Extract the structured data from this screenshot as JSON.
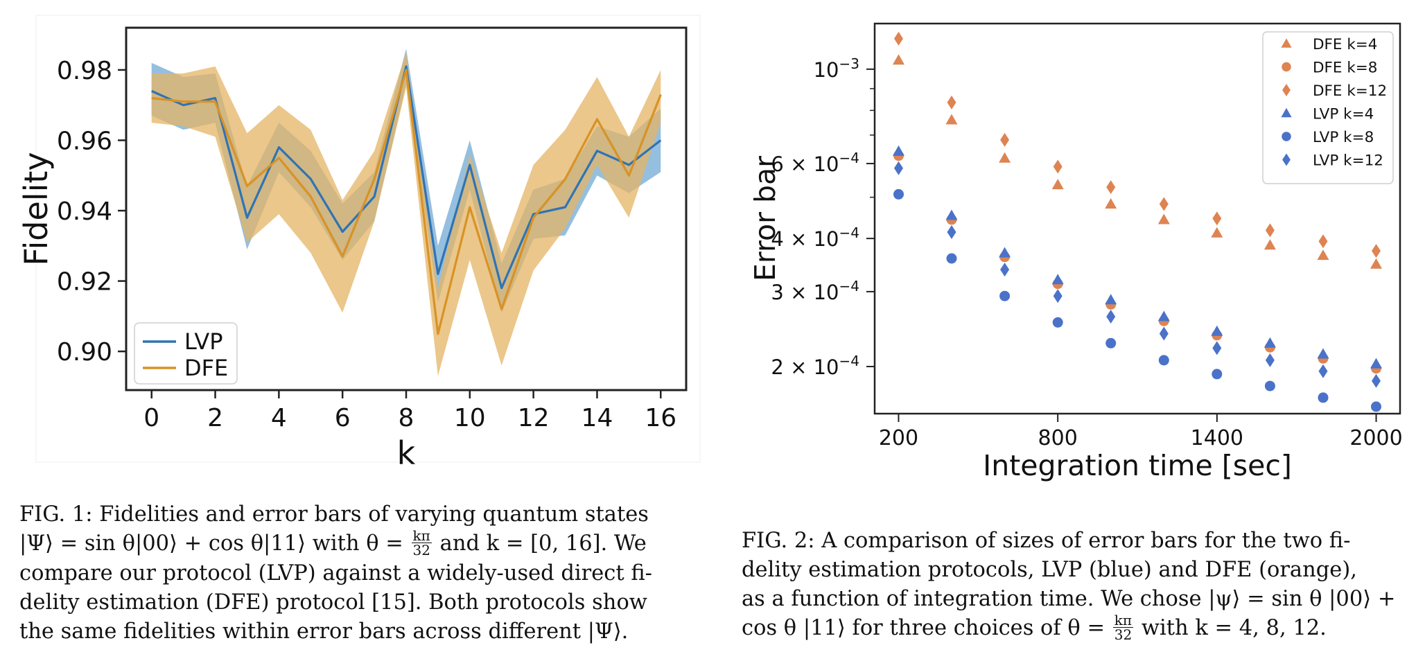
{
  "figure1": {
    "caption_lines": [
      "FIG. 1: Fidelities and error bars of varying quantum states",
      "|Ψ⟩ = sin θ|00⟩ + cos θ|11⟩ with θ = ",
      "and k = [0, 16]. We",
      "compare our protocol (LVP) against a widely-used direct fi-",
      "delity estimation (DFE) protocol [15]. Both protocols show",
      "the same fidelities within error bars across different |Ψ⟩."
    ],
    "theta_frac": {
      "num": "kπ",
      "den": "32"
    }
  },
  "figure2": {
    "caption_lines": [
      "FIG. 2: A comparison of sizes of error bars for the two fi-",
      "delity estimation protocols, LVP (blue) and DFE (orange),",
      "as a function of integration time. We chose |ψ⟩ = sin θ |00⟩ +",
      "cos θ |11⟩ for three choices of θ = ",
      "with k = 4, 8, 12."
    ],
    "theta_frac": {
      "num": "kπ",
      "den": "32"
    }
  },
  "colors": {
    "lvp": "#2f73b4",
    "lvp_band": "#82b4d8",
    "dfe": "#d89226",
    "dfe_band": "#e4b464",
    "blue_marker": "#4a72c9",
    "orange_marker": "#dd8452"
  },
  "chart_data": [
    {
      "type": "line",
      "xlabel": "k",
      "ylabel": "Fidelity",
      "xlim": [
        -0.8,
        16.8
      ],
      "ylim": [
        0.889,
        0.992
      ],
      "xticks": [
        0,
        2,
        4,
        6,
        8,
        10,
        12,
        14,
        16
      ],
      "yticks": [
        0.9,
        0.92,
        0.94,
        0.96,
        0.98
      ],
      "ytick_labels": [
        "0.90",
        "0.92",
        "0.94",
        "0.96",
        "0.98"
      ],
      "legend_position": "lower-left",
      "x": [
        0,
        1,
        2,
        3,
        4,
        5,
        6,
        7,
        8,
        9,
        10,
        11,
        12,
        13,
        14,
        15,
        16
      ],
      "series": [
        {
          "name": "LVP",
          "values": [
            0.974,
            0.97,
            0.972,
            0.938,
            0.958,
            0.949,
            0.934,
            0.944,
            0.981,
            0.922,
            0.953,
            0.918,
            0.939,
            0.941,
            0.957,
            0.953,
            0.96
          ],
          "lower": [
            0.967,
            0.963,
            0.965,
            0.929,
            0.951,
            0.941,
            0.926,
            0.937,
            0.976,
            0.914,
            0.946,
            0.911,
            0.932,
            0.933,
            0.95,
            0.945,
            0.951
          ],
          "upper": [
            0.982,
            0.978,
            0.979,
            0.947,
            0.965,
            0.957,
            0.942,
            0.951,
            0.986,
            0.93,
            0.96,
            0.925,
            0.946,
            0.949,
            0.964,
            0.961,
            0.969
          ]
        },
        {
          "name": "DFE",
          "values": [
            0.972,
            0.971,
            0.971,
            0.947,
            0.955,
            0.944,
            0.927,
            0.949,
            0.98,
            0.905,
            0.941,
            0.912,
            0.938,
            0.949,
            0.966,
            0.95,
            0.973
          ],
          "lower": [
            0.965,
            0.964,
            0.961,
            0.931,
            0.939,
            0.928,
            0.911,
            0.937,
            0.975,
            0.893,
            0.926,
            0.896,
            0.923,
            0.935,
            0.953,
            0.938,
            0.965
          ],
          "upper": [
            0.979,
            0.979,
            0.981,
            0.962,
            0.97,
            0.963,
            0.943,
            0.957,
            0.985,
            0.918,
            0.956,
            0.928,
            0.953,
            0.963,
            0.978,
            0.961,
            0.98
          ]
        }
      ]
    },
    {
      "type": "scatter",
      "xlabel": "Integration time [sec]",
      "ylabel": "Error bar",
      "yscale": "log",
      "xlim": [
        110,
        2090
      ],
      "ylim": [
        0.000155,
        0.00128
      ],
      "xticks": [
        200,
        800,
        1400,
        2000
      ],
      "yticks": [
        0.0002,
        0.0003,
        0.0004,
        0.0006,
        0.001
      ],
      "ytick_labels": [
        {
          "base": "2 × 10",
          "exp": "−4"
        },
        {
          "base": "3 × 10",
          "exp": "−4"
        },
        {
          "base": "4 × 10",
          "exp": "−4"
        },
        {
          "base": "6 × 10",
          "exp": "−4"
        },
        {
          "base": "10",
          "exp": "−3"
        }
      ],
      "legend_position": "top-right",
      "x": [
        200,
        400,
        600,
        800,
        1000,
        1200,
        1400,
        1600,
        1800,
        2000
      ],
      "series": [
        {
          "name": "DFE k=4",
          "marker": "triangle",
          "color": "orange",
          "values": [
            0.00105,
            0.00076,
            0.000618,
            0.000535,
            0.000482,
            0.000443,
            0.000412,
            0.000386,
            0.000365,
            0.000348
          ]
        },
        {
          "name": "DFE k=8",
          "marker": "circle",
          "color": "orange",
          "values": [
            0.000626,
            0.000443,
            0.000362,
            0.000313,
            0.00028,
            0.000256,
            0.000237,
            0.000222,
            0.000209,
            0.000198
          ]
        },
        {
          "name": "DFE k=12",
          "marker": "diamond",
          "color": "orange",
          "values": [
            0.00118,
            0.000835,
            0.000682,
            0.00059,
            0.000528,
            0.000482,
            0.000446,
            0.000418,
            0.000394,
            0.000374
          ]
        },
        {
          "name": "LVP k=4",
          "marker": "triangle",
          "color": "blue",
          "values": [
            0.000641,
            0.000453,
            0.00037,
            0.00032,
            0.000287,
            0.000262,
            0.000242,
            0.000227,
            0.000214,
            0.000203
          ]
        },
        {
          "name": "LVP k=8",
          "marker": "circle",
          "color": "blue",
          "values": [
            0.000508,
            0.000359,
            0.000293,
            0.000254,
            0.000227,
            0.000207,
            0.000192,
            0.00018,
            0.000169,
            0.000161
          ]
        },
        {
          "name": "LVP k=12",
          "marker": "diamond",
          "color": "blue",
          "values": [
            0.000585,
            0.000414,
            0.000338,
            0.000293,
            0.000262,
            0.000239,
            0.000221,
            0.000207,
            0.000195,
            0.000185
          ]
        }
      ]
    }
  ]
}
